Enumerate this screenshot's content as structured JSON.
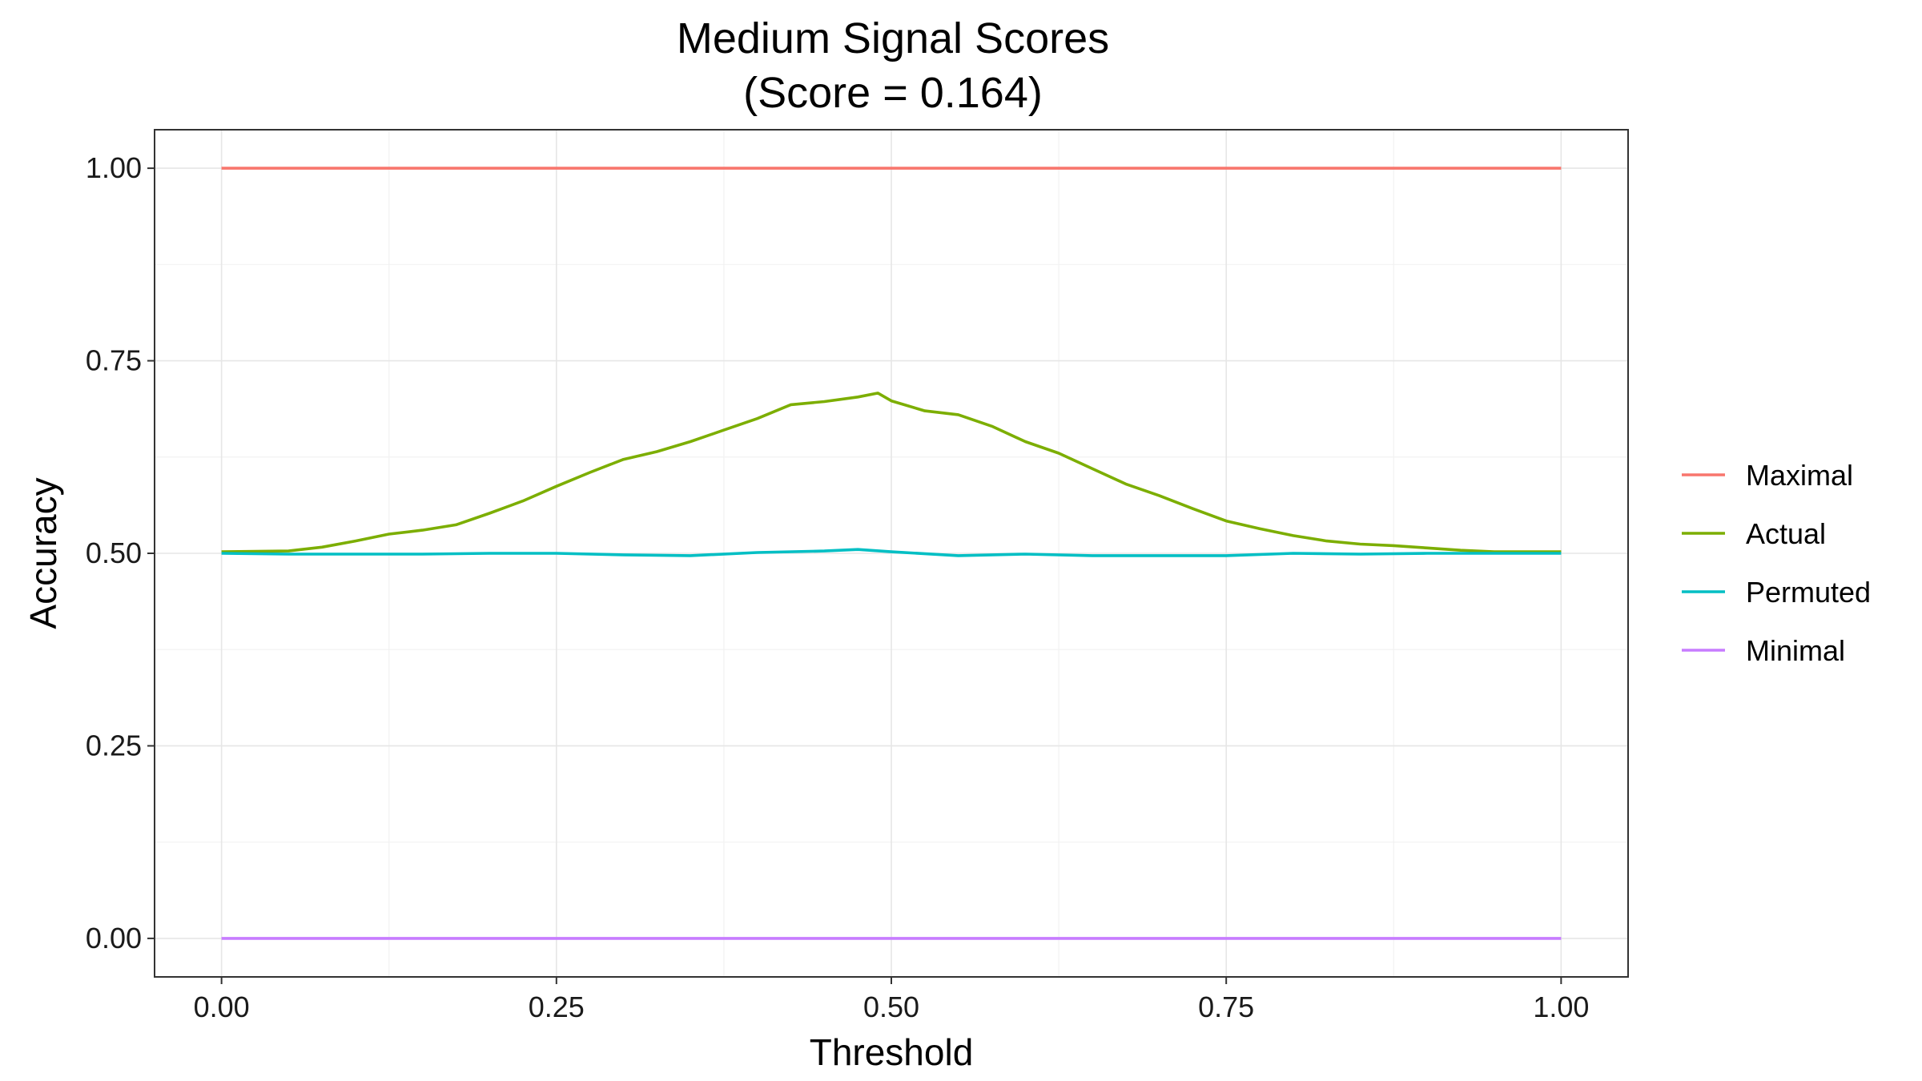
{
  "chart_data": {
    "type": "line",
    "title": "Medium Signal Scores",
    "subtitle": "(Score = 0.164)",
    "xlabel": "Threshold",
    "ylabel": "Accuracy",
    "xlim": [
      -0.05,
      1.05
    ],
    "ylim": [
      -0.05,
      1.05
    ],
    "x_ticks": [
      0,
      0.25,
      0.5,
      0.75,
      1
    ],
    "x_tick_labels": [
      "0.00",
      "0.25",
      "0.50",
      "0.75",
      "1.00"
    ],
    "y_ticks": [
      0,
      0.25,
      0.5,
      0.75,
      1
    ],
    "y_tick_labels": [
      "0.00",
      "0.25",
      "0.50",
      "0.75",
      "1.00"
    ],
    "grid": true,
    "legend_position": "right",
    "series": [
      {
        "name": "Maximal",
        "color": "#F8766D",
        "x": [
          0,
          1
        ],
        "y": [
          1.0,
          1.0
        ]
      },
      {
        "name": "Actual",
        "color": "#7CAE00",
        "x": [
          0,
          0.05,
          0.075,
          0.1,
          0.125,
          0.15,
          0.175,
          0.2,
          0.225,
          0.25,
          0.275,
          0.3,
          0.325,
          0.35,
          0.375,
          0.4,
          0.425,
          0.45,
          0.475,
          0.49,
          0.5,
          0.525,
          0.55,
          0.575,
          0.6,
          0.625,
          0.65,
          0.675,
          0.7,
          0.725,
          0.75,
          0.775,
          0.8,
          0.825,
          0.85,
          0.875,
          0.9,
          0.925,
          0.95,
          1.0
        ],
        "y": [
          0.502,
          0.503,
          0.508,
          0.516,
          0.525,
          0.53,
          0.537,
          0.552,
          0.568,
          0.587,
          0.605,
          0.622,
          0.632,
          0.645,
          0.66,
          0.675,
          0.693,
          0.697,
          0.703,
          0.708,
          0.698,
          0.685,
          0.68,
          0.665,
          0.645,
          0.63,
          0.61,
          0.59,
          0.575,
          0.558,
          0.542,
          0.532,
          0.523,
          0.516,
          0.512,
          0.51,
          0.507,
          0.504,
          0.502,
          0.502
        ]
      },
      {
        "name": "Permuted",
        "color": "#00BFC4",
        "x": [
          0,
          0.05,
          0.1,
          0.15,
          0.2,
          0.25,
          0.3,
          0.35,
          0.4,
          0.45,
          0.475,
          0.5,
          0.55,
          0.6,
          0.65,
          0.7,
          0.75,
          0.8,
          0.85,
          0.9,
          0.95,
          1.0
        ],
        "y": [
          0.5,
          0.499,
          0.499,
          0.499,
          0.5,
          0.5,
          0.498,
          0.497,
          0.501,
          0.503,
          0.505,
          0.502,
          0.497,
          0.499,
          0.497,
          0.497,
          0.497,
          0.5,
          0.499,
          0.5,
          0.5,
          0.5
        ]
      },
      {
        "name": "Minimal",
        "color": "#C77CFF",
        "x": [
          0,
          1
        ],
        "y": [
          0.0,
          0.0
        ]
      }
    ]
  }
}
